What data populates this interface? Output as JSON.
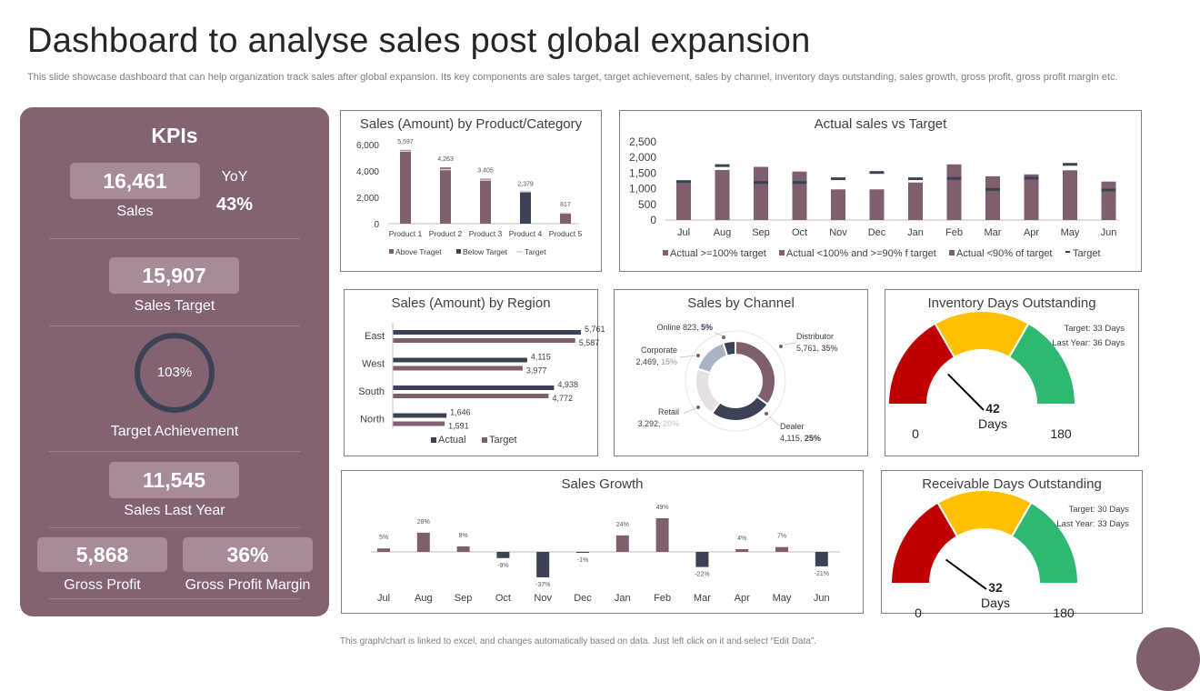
{
  "header": {
    "title": "Dashboard to analyse sales post global expansion",
    "subtitle": "This slide showcase dashboard that can help organization track sales after global expansion. Its key components are sales target, target achievement, sales by channel, inventory days outstanding, sales growth, gross profit, gross profit margin etc."
  },
  "footer": {
    "note": "This graph/chart is linked to excel, and changes automatically based on data. Just left click on it and select “Edit Data”."
  },
  "colors": {
    "kpi_panel": "#836272",
    "kpi_box": "#a88b98",
    "bar_main": "#7f5f6f",
    "bar_navy": "#3b4254",
    "ring": "#3b4254",
    "gauge_red": "#c00000",
    "gauge_yellow": "#ffc000",
    "gauge_green": "#2eb872"
  },
  "kpis": {
    "title": "KPIs",
    "sales": {
      "value": "16,461",
      "label": "Sales"
    },
    "yoy": {
      "label": "YoY",
      "value": "43%"
    },
    "sales_target": {
      "value": "15,907",
      "label": "Sales Target"
    },
    "target_achievement": {
      "value": "103%",
      "label": "Target Achievement",
      "fraction": 1.0
    },
    "sales_last_year": {
      "value": "11,545",
      "label": "Sales Last Year"
    },
    "gross_profit": {
      "value": "5,868",
      "label": "Gross Profit"
    },
    "gross_profit_margin": {
      "value": "36%",
      "label": "Gross Profit Margin"
    }
  },
  "chart_data": [
    {
      "id": "product",
      "type": "bar",
      "title": "Sales (Amount) by Product/Category",
      "categories": [
        "Product 1",
        "Product 2",
        "Product 3",
        "Product 4",
        "Product 5"
      ],
      "values": [
        5597,
        4263,
        3405,
        2379,
        817
      ],
      "value_labels": [
        "5,597",
        "4,263",
        "3,405",
        "2,379",
        "817"
      ],
      "targets": [
        5500,
        4100,
        3300,
        2450,
        800
      ],
      "status": [
        "above",
        "above",
        "above",
        "below",
        "above"
      ],
      "yticks": [
        "6,000",
        "4,000",
        "2,000",
        "0"
      ],
      "ylim": [
        0,
        6000
      ],
      "legend": [
        "Above Traget",
        "Below Target",
        "Target"
      ],
      "legend_position": "bottom"
    },
    {
      "id": "actual_vs_target",
      "type": "bar",
      "title": "Actual sales vs Target",
      "categories": [
        "Jul",
        "Aug",
        "Sep",
        "Oct",
        "Nov",
        "Dec",
        "Jan",
        "Feb",
        "Mar",
        "Apr",
        "May",
        "Jun"
      ],
      "values": [
        1250,
        1600,
        1700,
        1550,
        980,
        980,
        1200,
        1780,
        1400,
        1460,
        1590,
        1230
      ],
      "targets": [
        1230,
        1740,
        1200,
        1200,
        1320,
        1520,
        1320,
        1330,
        980,
        1340,
        1780,
        960
      ],
      "yticks": [
        "2,500",
        "2,000",
        "1,500",
        "1,000",
        "500",
        "0"
      ],
      "ylim": [
        0,
        2500
      ],
      "legend": [
        "Actual >=100% target",
        "Actual <100% and >=90% f target",
        "Actual <90% of target",
        "Target"
      ],
      "legend_position": "bottom"
    },
    {
      "id": "region",
      "type": "bar",
      "title": "Sales (Amount) by Region",
      "categories": [
        "East",
        "West",
        "South",
        "North"
      ],
      "actual": [
        5761,
        4115,
        4938,
        1646
      ],
      "target": [
        5587,
        3977,
        4772,
        1591
      ],
      "actual_labels": [
        "5,761",
        "4,115",
        "4,938",
        "1,646"
      ],
      "target_labels": [
        "5,587",
        "3,977",
        "4,772",
        "1,591"
      ],
      "legend": [
        "Actual",
        "Target"
      ],
      "legend_position": "bottom"
    },
    {
      "id": "channel",
      "type": "pie",
      "title": "Sales by Channel",
      "slices": [
        {
          "name": "Distributor",
          "value": 5761,
          "value_label": "5,761,",
          "pct": "35%",
          "color": "#7f5f6f"
        },
        {
          "name": "Dealer",
          "value": 4115,
          "value_label": "4,115,",
          "pct": "25%",
          "color": "#3b4254"
        },
        {
          "name": "Retail",
          "value": 3292,
          "value_label": "3,292,",
          "pct": "20%",
          "color": "#e6e0e3"
        },
        {
          "name": "Corporate",
          "value": 2469,
          "value_label": "2,469,",
          "pct": "15%",
          "color": "#aab2c4"
        },
        {
          "name": "Online",
          "value": 823,
          "value_label": "823,",
          "pct": "5%",
          "color": "#3b4254"
        }
      ]
    },
    {
      "id": "inventory",
      "type": "gauge",
      "title": "Inventory Days Outstanding",
      "target_text": "Target: 33 Days",
      "last_year_text": "Last Year: 36 Days",
      "value": 42,
      "unit": "Days",
      "min": 0,
      "max": 180
    },
    {
      "id": "growth",
      "type": "bar",
      "title": "Sales Growth",
      "categories": [
        "Jul",
        "Aug",
        "Sep",
        "Oct",
        "Nov",
        "Dec",
        "Jan",
        "Feb",
        "Mar",
        "Apr",
        "May",
        "Jun"
      ],
      "values": [
        5,
        28,
        8,
        -9,
        -37,
        -1,
        24,
        49,
        -22,
        4,
        7,
        -21
      ],
      "value_labels": [
        "5%",
        "28%",
        "8%",
        "-9%",
        "-37%",
        "-1%",
        "24%",
        "49%",
        "-22%",
        "4%",
        "7%",
        "-21%"
      ]
    },
    {
      "id": "receivable",
      "type": "gauge",
      "title": "Receivable Days Outstanding",
      "target_text": "Target: 30 Days",
      "last_year_text": "Last Year: 33 Days",
      "value": 32,
      "unit": "Days",
      "min": 0,
      "max": 180
    }
  ]
}
